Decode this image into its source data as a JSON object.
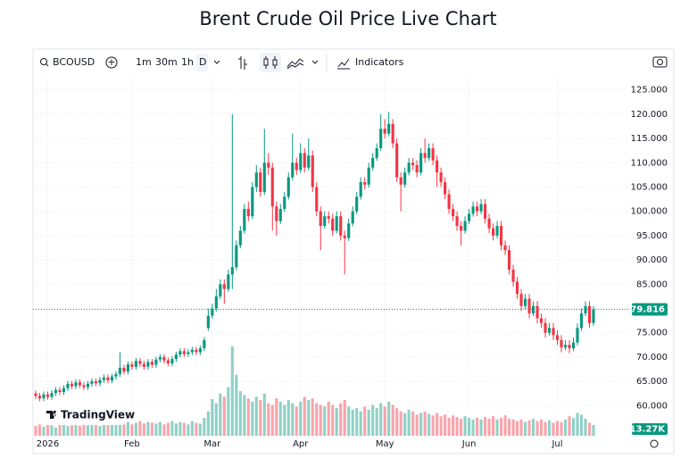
{
  "title": "Brent Crude Oil Price Live Chart",
  "toolbar": {
    "symbol": "BCOUSD",
    "intervals": [
      "1m",
      "30m",
      "1h",
      "D"
    ],
    "indicators": "Indicators"
  },
  "watermark": "TradingView",
  "chart_data": {
    "type": "candlestick",
    "open": [
      62.5,
      62.0,
      61.5,
      62.3,
      61.8,
      62.6,
      63.2,
      62.8,
      63.6,
      64.5,
      64.0,
      64.8,
      64.2,
      63.8,
      64.5,
      65.0,
      64.6,
      65.3,
      65.8,
      65.2,
      66.0,
      66.5,
      67.8,
      67.0,
      68.5,
      68.0,
      69.2,
      68.6,
      68.0,
      69.0,
      68.4,
      69.5,
      70.0,
      69.3,
      68.7,
      69.6,
      70.5,
      71.2,
      70.6,
      71.0,
      71.5,
      71.0,
      71.8,
      76.0,
      78.5,
      80.0,
      82.5,
      85.0,
      84.0,
      87.0,
      88.5,
      93.0,
      96.0,
      100.5,
      99.0,
      105.0,
      108.0,
      104.0,
      110.0,
      109.0,
      101.0,
      98.0,
      100.5,
      103.0,
      107.0,
      110.0,
      108.5,
      112.0,
      109.0,
      111.5,
      105.0,
      100.0,
      97.0,
      99.0,
      98.5,
      96.0,
      99.0,
      95.0,
      94.5,
      97.5,
      100.0,
      103.0,
      106.0,
      105.5,
      109.0,
      111.0,
      113.0,
      117.0,
      116.0,
      118.0,
      114.0,
      107.0,
      105.5,
      108.0,
      110.0,
      109.5,
      108.0,
      112.0,
      111.0,
      113.0,
      110.5,
      108.0,
      106.0,
      103.5,
      100.5,
      99.0,
      97.0,
      96.0,
      98.0,
      99.5,
      101.0,
      100.0,
      101.5,
      98.5,
      96.5,
      95.0,
      97.0,
      93.0,
      92.0,
      88.0,
      85.5,
      83.0,
      80.5,
      82.0,
      79.0,
      80.5,
      78.0,
      77.0,
      75.0,
      76.0,
      74.5,
      73.5,
      72.0,
      72.5,
      71.8,
      73.0,
      76.0,
      79.0,
      80.5,
      77.0
    ],
    "high": [
      63.1,
      62.6,
      62.9,
      62.9,
      63.2,
      63.8,
      63.8,
      64.2,
      65.1,
      65.1,
      65.4,
      65.4,
      64.8,
      65.1,
      65.6,
      65.6,
      65.9,
      66.4,
      66.4,
      66.6,
      67.1,
      71.0,
      68.4,
      69.1,
      69.1,
      69.8,
      69.8,
      69.2,
      69.6,
      69.6,
      70.1,
      70.6,
      70.6,
      69.9,
      70.2,
      71.1,
      71.8,
      71.8,
      71.6,
      72.1,
      72.1,
      72.4,
      74.1,
      80.0,
      81.0,
      84.0,
      86.0,
      86.0,
      88.0,
      120.0,
      94.0,
      97.0,
      101.5,
      102.0,
      106.0,
      109.5,
      109.0,
      117.0,
      112.0,
      110.0,
      102.0,
      101.5,
      104.0,
      108.0,
      116.0,
      111.0,
      114.0,
      113.0,
      115.0,
      112.5,
      106.0,
      101.0,
      100.0,
      100.0,
      99.5,
      100.0,
      100.0,
      96.0,
      98.5,
      101.0,
      104.0,
      107.0,
      107.0,
      110.0,
      112.0,
      114.0,
      120.0,
      119.0,
      120.5,
      119.0,
      115.0,
      108.0,
      109.0,
      111.0,
      111.0,
      110.5,
      113.0,
      115.0,
      114.0,
      114.0,
      111.5,
      109.0,
      107.0,
      104.5,
      101.5,
      100.0,
      98.0,
      99.0,
      100.5,
      102.0,
      102.0,
      102.5,
      102.5,
      99.5,
      97.5,
      98.0,
      98.0,
      94.0,
      93.0,
      89.0,
      86.5,
      84.0,
      83.0,
      83.0,
      81.5,
      81.5,
      79.0,
      78.0,
      77.0,
      77.0,
      75.5,
      74.5,
      73.5,
      73.5,
      74.0,
      77.0,
      80.0,
      81.5,
      81.5,
      80.5
    ],
    "low": [
      61.4,
      60.9,
      60.9,
      61.2,
      61.2,
      62.0,
      62.2,
      62.2,
      63.0,
      63.4,
      63.4,
      63.6,
      63.2,
      63.2,
      63.9,
      64.0,
      64.0,
      64.7,
      64.6,
      64.6,
      65.4,
      65.9,
      66.4,
      66.4,
      67.4,
      67.4,
      68.0,
      67.4,
      67.4,
      67.8,
      67.8,
      68.9,
      68.7,
      68.1,
      68.1,
      69.0,
      69.9,
      70.0,
      70.0,
      70.4,
      70.4,
      70.4,
      71.2,
      75.4,
      77.9,
      79.4,
      81.9,
      81.0,
      83.4,
      84.0,
      87.9,
      92.4,
      95.4,
      98.0,
      98.4,
      104.0,
      103.0,
      103.4,
      107.5,
      96.0,
      95.0,
      97.4,
      99.9,
      102.4,
      106.4,
      107.5,
      107.9,
      108.0,
      108.4,
      104.0,
      99.0,
      92.0,
      96.4,
      97.5,
      95.0,
      95.4,
      94.0,
      87.0,
      93.9,
      96.9,
      99.4,
      102.4,
      104.5,
      104.9,
      108.4,
      110.4,
      112.4,
      115.0,
      115.4,
      113.0,
      106.0,
      100.0,
      104.9,
      107.4,
      108.5,
      107.0,
      107.4,
      110.0,
      110.4,
      109.5,
      105.0,
      105.0,
      102.5,
      99.5,
      98.0,
      96.0,
      93.0,
      95.4,
      97.4,
      98.9,
      99.0,
      99.4,
      97.5,
      95.5,
      94.0,
      94.4,
      92.0,
      91.0,
      87.0,
      84.5,
      82.0,
      79.5,
      79.9,
      78.0,
      78.4,
      77.0,
      76.0,
      74.0,
      74.4,
      73.5,
      72.5,
      71.0,
      71.4,
      70.8,
      71.2,
      72.4,
      75.4,
      78.4,
      76.0,
      76.4
    ],
    "close": [
      62.0,
      61.5,
      62.3,
      61.8,
      62.6,
      63.2,
      62.8,
      63.6,
      64.5,
      64.0,
      64.8,
      64.2,
      63.8,
      64.5,
      65.0,
      64.6,
      65.3,
      65.8,
      65.2,
      66.0,
      66.5,
      67.8,
      67.0,
      68.5,
      68.0,
      69.2,
      68.6,
      68.0,
      69.0,
      68.4,
      69.5,
      70.0,
      69.3,
      68.7,
      69.6,
      70.5,
      71.2,
      70.6,
      71.0,
      71.5,
      71.0,
      71.8,
      73.5,
      78.5,
      80.0,
      82.5,
      85.0,
      84.0,
      87.0,
      88.5,
      93.0,
      96.0,
      100.5,
      99.0,
      105.0,
      108.0,
      104.0,
      110.0,
      109.0,
      101.0,
      98.0,
      100.5,
      103.0,
      107.0,
      110.0,
      108.5,
      112.0,
      109.0,
      111.5,
      105.0,
      100.0,
      97.0,
      99.0,
      98.5,
      96.0,
      99.0,
      95.0,
      94.5,
      97.5,
      100.0,
      103.0,
      106.0,
      105.5,
      109.0,
      111.0,
      113.0,
      117.0,
      116.0,
      118.0,
      114.0,
      107.0,
      105.5,
      108.0,
      110.0,
      109.5,
      108.0,
      112.0,
      111.0,
      113.0,
      110.5,
      108.0,
      106.0,
      103.5,
      100.5,
      99.0,
      97.0,
      96.0,
      98.0,
      99.5,
      101.0,
      100.0,
      101.5,
      98.5,
      96.5,
      95.0,
      97.0,
      93.0,
      92.0,
      88.0,
      85.5,
      83.0,
      80.5,
      82.0,
      79.0,
      80.5,
      78.0,
      77.0,
      75.0,
      76.0,
      74.5,
      73.5,
      72.0,
      72.5,
      71.8,
      73.0,
      76.0,
      79.0,
      80.5,
      77.0,
      79.816
    ],
    "volume": [
      12,
      14,
      11,
      15,
      13,
      10,
      14,
      16,
      12,
      13,
      14,
      12,
      15,
      13,
      16,
      14,
      12,
      15,
      13,
      14,
      16,
      18,
      15,
      17,
      14,
      16,
      18,
      15,
      17,
      16,
      15,
      17,
      14,
      16,
      18,
      15,
      17,
      16,
      14,
      18,
      16,
      15,
      22,
      30,
      45,
      40,
      52,
      48,
      60,
      110,
      75,
      55,
      50,
      46,
      42,
      48,
      44,
      52,
      40,
      38,
      46,
      42,
      38,
      44,
      40,
      36,
      42,
      48,
      44,
      46,
      40,
      38,
      36,
      42,
      38,
      34,
      40,
      44,
      36,
      32,
      34,
      30,
      36,
      32,
      38,
      34,
      40,
      36,
      42,
      38,
      34,
      30,
      28,
      32,
      30,
      26,
      28,
      30,
      27,
      25,
      28,
      24,
      26,
      22,
      25,
      23,
      21,
      24,
      22,
      20,
      22,
      20,
      23,
      21,
      24,
      20,
      22,
      25,
      21,
      20,
      18,
      20,
      17,
      19,
      21,
      18,
      20,
      17,
      19,
      16,
      18,
      17,
      20,
      24,
      22,
      28,
      26,
      21,
      16,
      13.27
    ],
    "volume_label": "13.27K",
    "up_color": "#089981",
    "down_color": "#f23645",
    "ylim": [
      53.8,
      127.7
    ],
    "yticks": [
      {
        "value": 60,
        "label": "60.000"
      },
      {
        "value": 65,
        "label": "65.000"
      },
      {
        "value": 70,
        "label": "70.000"
      },
      {
        "value": 75,
        "label": "75.000"
      },
      {
        "value": 80,
        "label": "80.000"
      },
      {
        "value": 85,
        "label": "85.000"
      },
      {
        "value": 90,
        "label": "90.000"
      },
      {
        "value": 95,
        "label": "95.000"
      },
      {
        "value": 100,
        "label": "100.000"
      },
      {
        "value": 105,
        "label": "105.000"
      },
      {
        "value": 110,
        "label": "110.000"
      },
      {
        "value": 115,
        "label": "115.000"
      },
      {
        "value": 120,
        "label": "120.000"
      },
      {
        "value": 125,
        "label": "125.000"
      }
    ],
    "xticks": [
      {
        "value": 3,
        "label": "2026"
      },
      {
        "value": 24,
        "label": "Feb"
      },
      {
        "value": 44,
        "label": "Mar"
      },
      {
        "value": 66,
        "label": "Apr"
      },
      {
        "value": 87,
        "label": "May"
      },
      {
        "value": 108,
        "label": "Jun"
      },
      {
        "value": 130,
        "label": "Jul"
      }
    ],
    "grid": true
  }
}
